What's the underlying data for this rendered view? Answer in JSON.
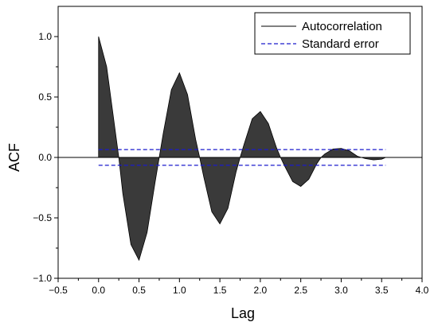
{
  "chart_data": {
    "type": "area",
    "xlabel": "Lag",
    "ylabel": "ACF",
    "xlim": [
      -0.5,
      4.0
    ],
    "ylim": [
      -1.0,
      1.25
    ],
    "x_ticks": [
      -0.5,
      0.0,
      0.5,
      1.0,
      1.5,
      2.0,
      2.5,
      3.0,
      3.5,
      4.0
    ],
    "y_ticks": [
      -1.0,
      -0.5,
      0.0,
      0.5,
      1.0
    ],
    "x_tick_labels": [
      "−0.5",
      "0.0",
      "0.5",
      "1.0",
      "1.5",
      "2.0",
      "2.5",
      "3.0",
      "3.5",
      "4.0"
    ],
    "y_tick_labels": [
      "−1.0",
      "−0.5",
      "0.0",
      "0.5",
      "1.0"
    ],
    "grid": false,
    "legend_position": "top-right",
    "series": [
      {
        "name": "Autocorrelation",
        "style": "solid",
        "color": "#000000",
        "fill": "#3a3a3a",
        "x": [
          0.0,
          0.1,
          0.2,
          0.25,
          0.3,
          0.4,
          0.5,
          0.6,
          0.7,
          0.75,
          0.8,
          0.9,
          1.0,
          1.1,
          1.2,
          1.25,
          1.3,
          1.4,
          1.5,
          1.6,
          1.7,
          1.75,
          1.8,
          1.9,
          2.0,
          2.1,
          2.2,
          2.25,
          2.3,
          2.4,
          2.5,
          2.6,
          2.7,
          2.75,
          2.8,
          2.9,
          3.0,
          3.1,
          3.2,
          3.25,
          3.3,
          3.4,
          3.5,
          3.55
        ],
        "y": [
          1.0,
          0.75,
          0.25,
          0.0,
          -0.3,
          -0.72,
          -0.85,
          -0.62,
          -0.2,
          0.0,
          0.2,
          0.56,
          0.7,
          0.52,
          0.15,
          0.0,
          -0.16,
          -0.45,
          -0.55,
          -0.42,
          -0.12,
          0.0,
          0.11,
          0.32,
          0.38,
          0.28,
          0.08,
          0.0,
          -0.07,
          -0.2,
          -0.24,
          -0.18,
          -0.05,
          0.0,
          0.03,
          0.07,
          0.075,
          0.055,
          0.01,
          0.0,
          -0.01,
          -0.02,
          -0.015,
          0.0
        ]
      },
      {
        "name": "Standard error",
        "style": "dashed",
        "color": "#1a1acc",
        "upper": 0.065,
        "lower": -0.065,
        "x_range": [
          0.0,
          3.55
        ]
      }
    ]
  }
}
